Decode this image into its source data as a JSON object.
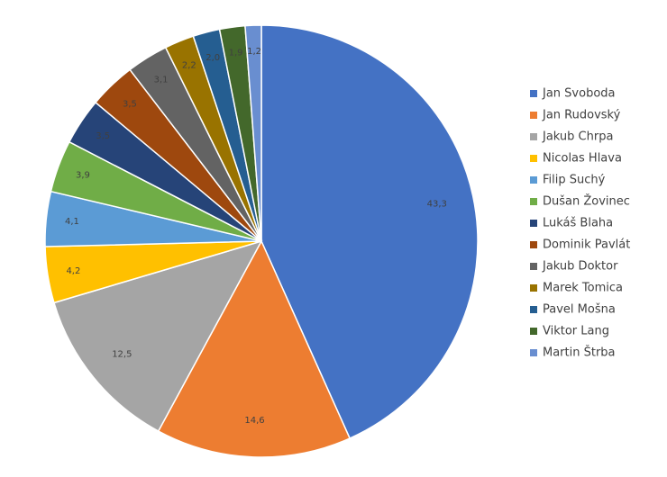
{
  "chart_data": {
    "type": "pie",
    "title": "",
    "legend_position": "right",
    "series": [
      {
        "name": "Jan Svoboda",
        "value": 43.3,
        "label": "43,3",
        "color": "#4472C4"
      },
      {
        "name": "Jan Rudovský",
        "value": 14.6,
        "label": "14,6",
        "color": "#ED7D31"
      },
      {
        "name": "Jakub Chrpa",
        "value": 12.5,
        "label": "12,5",
        "color": "#A5A5A5"
      },
      {
        "name": "Nicolas Hlava",
        "value": 4.2,
        "label": "4,2",
        "color": "#FFC000"
      },
      {
        "name": "Filip Suchý",
        "value": 4.1,
        "label": "4,1",
        "color": "#5B9BD5"
      },
      {
        "name": "Dušan Žovinec",
        "value": 3.9,
        "label": "3,9",
        "color": "#70AD47"
      },
      {
        "name": "Lukáš Blaha",
        "value": 3.5,
        "label": "3,5",
        "color": "#264478"
      },
      {
        "name": "Dominik Pavlát",
        "value": 3.5,
        "label": "3,5",
        "color": "#9E480E"
      },
      {
        "name": "Jakub Doktor",
        "value": 3.1,
        "label": "3,1",
        "color": "#636363"
      },
      {
        "name": "Marek Tomica",
        "value": 2.2,
        "label": "2,2",
        "color": "#997300"
      },
      {
        "name": "Pavel Mošna",
        "value": 2.0,
        "label": "2,0",
        "color": "#255E91"
      },
      {
        "name": "Viktor Lang",
        "value": 1.9,
        "label": "1,9",
        "color": "#43682B"
      },
      {
        "name": "Martin Štrba",
        "value": 1.2,
        "label": "1,2",
        "color": "#698ED0"
      }
    ]
  }
}
